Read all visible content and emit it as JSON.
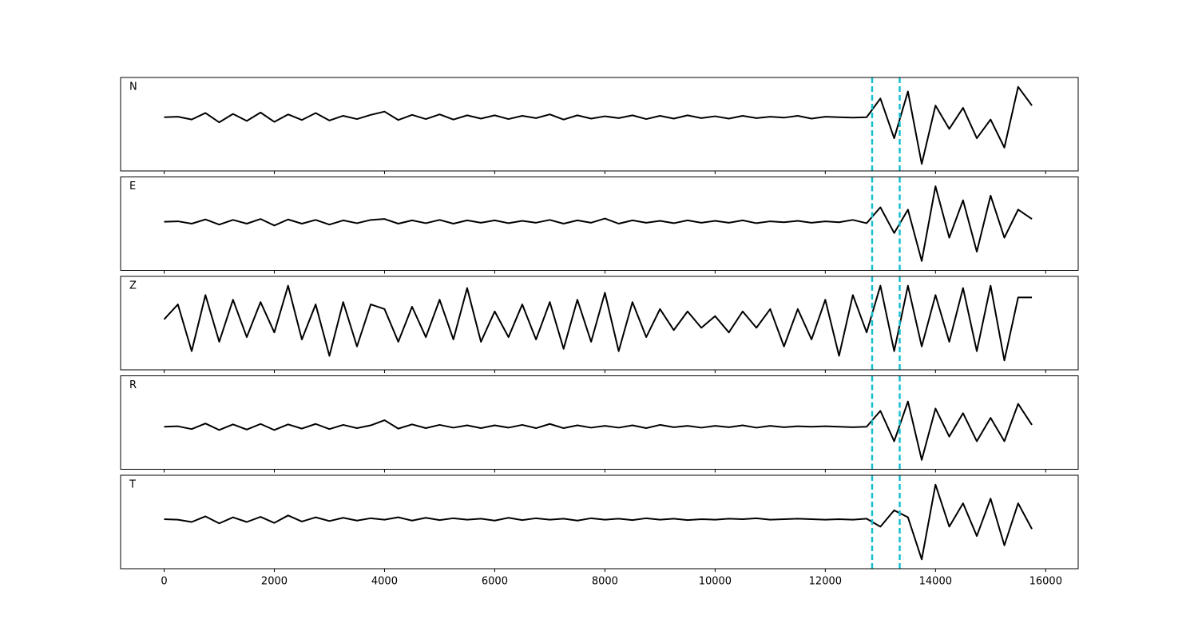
{
  "chart_data": [
    {
      "type": "line",
      "label": "N",
      "color": "#000000",
      "vlines": [
        12850,
        13350
      ],
      "vline_color": "#17becf",
      "xlim": [
        -790,
        16590
      ],
      "ylim": [
        -1,
        1
      ],
      "xticks": [
        0,
        2000,
        4000,
        6000,
        8000,
        10000,
        12000,
        14000,
        16000
      ],
      "tick_labels": false,
      "x": [
        0,
        250,
        500,
        750,
        1000,
        1250,
        1500,
        1750,
        2000,
        2250,
        2500,
        2750,
        3000,
        3250,
        3500,
        3750,
        4000,
        4250,
        4500,
        4750,
        5000,
        5250,
        5500,
        5750,
        6000,
        6250,
        6500,
        6750,
        7000,
        7250,
        7500,
        7750,
        8000,
        8250,
        8500,
        8750,
        9000,
        9250,
        9500,
        9750,
        10000,
        10250,
        10500,
        10750,
        11000,
        11250,
        11500,
        11750,
        12000,
        12250,
        12500,
        12750,
        13000,
        13250,
        13500,
        13750,
        14000,
        14250,
        14500,
        14750,
        15000,
        15250,
        15500,
        15750
      ],
      "values": [
        0.15,
        0.16,
        0.1,
        0.24,
        0.04,
        0.22,
        0.07,
        0.25,
        0.05,
        0.21,
        0.09,
        0.24,
        0.08,
        0.18,
        0.11,
        0.2,
        0.27,
        0.09,
        0.2,
        0.11,
        0.21,
        0.1,
        0.19,
        0.12,
        0.19,
        0.11,
        0.18,
        0.13,
        0.21,
        0.1,
        0.19,
        0.12,
        0.17,
        0.13,
        0.19,
        0.11,
        0.18,
        0.12,
        0.19,
        0.13,
        0.17,
        0.12,
        0.18,
        0.13,
        0.16,
        0.14,
        0.18,
        0.12,
        0.16,
        0.15,
        0.14,
        0.15,
        0.55,
        -0.3,
        0.7,
        -0.85,
        0.4,
        -0.1,
        0.35,
        -0.3,
        0.1,
        -0.5,
        0.8,
        0.4
      ]
    },
    {
      "type": "line",
      "label": "E",
      "color": "#000000",
      "vlines": [
        12850,
        13350
      ],
      "vline_color": "#17becf",
      "xlim": [
        -790,
        16590
      ],
      "ylim": [
        -1,
        1
      ],
      "xticks": [
        0,
        2000,
        4000,
        6000,
        8000,
        10000,
        12000,
        14000,
        16000
      ],
      "tick_labels": false,
      "x": [
        0,
        250,
        500,
        750,
        1000,
        1250,
        1500,
        1750,
        2000,
        2250,
        2500,
        2750,
        3000,
        3250,
        3500,
        3750,
        4000,
        4250,
        4500,
        4750,
        5000,
        5250,
        5500,
        5750,
        6000,
        6250,
        6500,
        6750,
        7000,
        7250,
        7500,
        7750,
        8000,
        8250,
        8500,
        8750,
        9000,
        9250,
        9500,
        9750,
        10000,
        10250,
        10500,
        10750,
        11000,
        11250,
        11500,
        11750,
        12000,
        12250,
        12500,
        12750,
        13000,
        13250,
        13500,
        13750,
        14000,
        14250,
        14500,
        14750,
        15000,
        15250,
        15500,
        15750
      ],
      "values": [
        0.04,
        0.05,
        0.0,
        0.09,
        -0.02,
        0.08,
        0.0,
        0.1,
        -0.04,
        0.09,
        0.0,
        0.08,
        -0.02,
        0.07,
        0.01,
        0.08,
        0.1,
        0.0,
        0.07,
        0.01,
        0.08,
        0.0,
        0.07,
        0.02,
        0.07,
        0.01,
        0.06,
        0.02,
        0.08,
        0.0,
        0.07,
        0.02,
        0.11,
        0.0,
        0.07,
        0.02,
        0.06,
        0.01,
        0.07,
        0.02,
        0.06,
        0.02,
        0.07,
        0.01,
        0.05,
        0.03,
        0.06,
        0.02,
        0.05,
        0.03,
        0.08,
        0.01,
        0.35,
        -0.2,
        0.3,
        -0.8,
        0.8,
        -0.3,
        0.5,
        -0.6,
        0.6,
        -0.3,
        0.3,
        0.1
      ]
    },
    {
      "type": "line",
      "label": "Z",
      "color": "#000000",
      "vlines": [
        12850,
        13350
      ],
      "vline_color": "#17becf",
      "xlim": [
        -790,
        16590
      ],
      "ylim": [
        -1,
        1
      ],
      "xticks": [
        0,
        2000,
        4000,
        6000,
        8000,
        10000,
        12000,
        14000,
        16000
      ],
      "tick_labels": false,
      "x": [
        0,
        250,
        500,
        750,
        1000,
        1250,
        1500,
        1750,
        2000,
        2250,
        2500,
        2750,
        3000,
        3250,
        3500,
        3750,
        4000,
        4250,
        4500,
        4750,
        5000,
        5250,
        5500,
        5750,
        6000,
        6250,
        6500,
        6750,
        7000,
        7250,
        7500,
        7750,
        8000,
        8250,
        8500,
        8750,
        9000,
        9250,
        9500,
        9750,
        10000,
        10250,
        10500,
        10750,
        11000,
        11250,
        11500,
        11750,
        12000,
        12250,
        12500,
        12750,
        13000,
        13250,
        13500,
        13750,
        14000,
        14250,
        14500,
        14750,
        15000,
        15250,
        15500,
        15750
      ],
      "values": [
        0.08,
        0.4,
        -0.6,
        0.6,
        -0.4,
        0.5,
        -0.3,
        0.45,
        -0.2,
        0.8,
        -0.35,
        0.4,
        -0.7,
        0.45,
        -0.5,
        0.4,
        0.3,
        -0.4,
        0.35,
        -0.3,
        0.5,
        -0.35,
        0.75,
        -0.4,
        0.25,
        -0.3,
        0.4,
        -0.35,
        0.45,
        -0.55,
        0.5,
        -0.4,
        0.65,
        -0.6,
        0.45,
        -0.3,
        0.3,
        -0.15,
        0.25,
        -0.1,
        0.15,
        -0.2,
        0.25,
        -0.1,
        0.3,
        -0.5,
        0.3,
        -0.35,
        0.5,
        -0.7,
        0.6,
        -0.2,
        0.8,
        -0.6,
        0.8,
        -0.5,
        0.6,
        -0.4,
        0.75,
        -0.6,
        0.8,
        -0.8,
        0.55,
        0.55
      ]
    },
    {
      "type": "line",
      "label": "R",
      "color": "#000000",
      "vlines": [
        12850,
        13350
      ],
      "vline_color": "#17becf",
      "xlim": [
        -790,
        16590
      ],
      "ylim": [
        -1,
        1
      ],
      "xticks": [
        0,
        2000,
        4000,
        6000,
        8000,
        10000,
        12000,
        14000,
        16000
      ],
      "tick_labels": false,
      "x": [
        0,
        250,
        500,
        750,
        1000,
        1250,
        1500,
        1750,
        2000,
        2250,
        2500,
        2750,
        3000,
        3250,
        3500,
        3750,
        4000,
        4250,
        4500,
        4750,
        5000,
        5250,
        5500,
        5750,
        6000,
        6250,
        6500,
        6750,
        7000,
        7250,
        7500,
        7750,
        8000,
        8250,
        8500,
        8750,
        9000,
        9250,
        9500,
        9750,
        10000,
        10250,
        10500,
        10750,
        11000,
        11250,
        11500,
        11750,
        12000,
        12250,
        12500,
        12750,
        13000,
        13250,
        13500,
        13750,
        14000,
        14250,
        14500,
        14750,
        15000,
        15250,
        15500,
        15750
      ],
      "values": [
        -0.09,
        -0.08,
        -0.14,
        -0.02,
        -0.16,
        -0.04,
        -0.15,
        -0.03,
        -0.16,
        -0.04,
        -0.13,
        -0.03,
        -0.14,
        -0.05,
        -0.12,
        -0.06,
        0.05,
        -0.13,
        -0.04,
        -0.12,
        -0.05,
        -0.11,
        -0.06,
        -0.12,
        -0.06,
        -0.11,
        -0.05,
        -0.12,
        -0.03,
        -0.12,
        -0.06,
        -0.11,
        -0.07,
        -0.11,
        -0.06,
        -0.12,
        -0.05,
        -0.1,
        -0.07,
        -0.11,
        -0.07,
        -0.1,
        -0.06,
        -0.11,
        -0.07,
        -0.1,
        -0.08,
        -0.09,
        -0.08,
        -0.09,
        -0.1,
        -0.09,
        0.25,
        -0.4,
        0.45,
        -0.8,
        0.3,
        -0.3,
        0.2,
        -0.4,
        0.1,
        -0.4,
        0.4,
        -0.05
      ]
    },
    {
      "type": "line",
      "label": "T",
      "color": "#000000",
      "vlines": [
        12850,
        13350
      ],
      "vline_color": "#17becf",
      "xlim": [
        -790,
        16590
      ],
      "ylim": [
        -1,
        1
      ],
      "xticks": [
        0,
        2000,
        4000,
        6000,
        8000,
        10000,
        12000,
        14000,
        16000
      ],
      "tick_labels": true,
      "x": [
        0,
        250,
        500,
        750,
        1000,
        1250,
        1500,
        1750,
        2000,
        2250,
        2500,
        2750,
        3000,
        3250,
        3500,
        3750,
        4000,
        4250,
        4500,
        4750,
        5000,
        5250,
        5500,
        5750,
        6000,
        6250,
        6500,
        6750,
        7000,
        7250,
        7500,
        7750,
        8000,
        8250,
        8500,
        8750,
        9000,
        9250,
        9500,
        9750,
        10000,
        10250,
        10500,
        10750,
        11000,
        11250,
        11500,
        11750,
        12000,
        12250,
        12500,
        12750,
        13000,
        13250,
        13500,
        13750,
        14000,
        14250,
        14500,
        14750,
        15000,
        15250,
        15500,
        15750
      ],
      "values": [
        0.06,
        0.05,
        0.0,
        0.12,
        -0.03,
        0.1,
        0.0,
        0.11,
        -0.02,
        0.14,
        0.01,
        0.1,
        0.02,
        0.09,
        0.03,
        0.08,
        0.05,
        0.1,
        0.03,
        0.09,
        0.04,
        0.08,
        0.05,
        0.07,
        0.03,
        0.09,
        0.04,
        0.08,
        0.05,
        0.07,
        0.03,
        0.08,
        0.05,
        0.07,
        0.04,
        0.08,
        0.05,
        0.07,
        0.04,
        0.06,
        0.05,
        0.07,
        0.06,
        0.08,
        0.05,
        0.06,
        0.07,
        0.06,
        0.05,
        0.06,
        0.05,
        0.07,
        -0.1,
        0.25,
        0.1,
        -0.8,
        0.8,
        -0.1,
        0.4,
        -0.3,
        0.5,
        -0.5,
        0.4,
        -0.15
      ]
    }
  ]
}
